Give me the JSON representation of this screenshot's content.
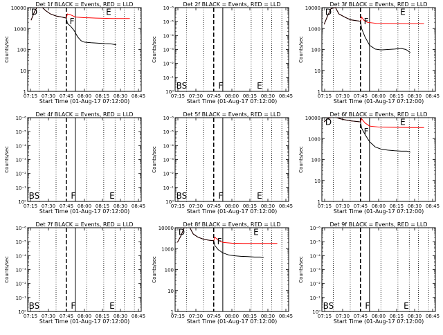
{
  "chart_data": [
    {
      "type": "line",
      "scale": "log",
      "title": "Det 1f BLACK = Events, RED = LLD",
      "ylabel": "Counts/sec",
      "xlabel": "Start Time (01-Aug-17 07:12:00)",
      "xticks": [
        "07:15",
        "07:30",
        "07:45",
        "08:00",
        "08:15",
        "08:30",
        "08:45"
      ],
      "xlim": [
        0,
        100
      ],
      "yticks": [
        "1",
        "10",
        "100",
        "1000",
        "10000"
      ],
      "ylim": [
        0,
        4
      ],
      "letters": [
        {
          "text": "D",
          "x": 3,
          "ly": 3.95
        },
        {
          "text": "F",
          "x": 37,
          "ly": 3.5
        },
        {
          "text": "E",
          "x": 69,
          "ly": 3.95
        }
      ],
      "series": [
        {
          "color": "#ff0000",
          "points": [
            [
              3,
              3.4
            ],
            [
              6,
              3.8
            ],
            [
              8,
              4.0
            ],
            [
              13,
              4.0
            ],
            [
              16,
              3.85
            ],
            [
              20,
              3.7
            ],
            [
              25,
              3.6
            ],
            [
              30,
              3.55
            ],
            [
              34,
              3.5
            ],
            [
              35,
              3.7
            ],
            [
              38,
              3.65
            ],
            [
              42,
              3.55
            ],
            [
              50,
              3.52
            ],
            [
              60,
              3.5
            ],
            [
              75,
              3.48
            ],
            [
              90,
              3.48
            ]
          ]
        },
        {
          "color": "#000000",
          "points": [
            [
              3,
              3.4
            ],
            [
              6,
              3.8
            ],
            [
              8,
              4.0
            ],
            [
              13,
              4.0
            ],
            [
              16,
              3.85
            ],
            [
              20,
              3.7
            ],
            [
              25,
              3.6
            ],
            [
              30,
              3.55
            ],
            [
              34,
              3.5
            ],
            [
              35,
              3.25
            ],
            [
              38,
              3.1
            ],
            [
              41,
              2.9
            ],
            [
              44,
              2.6
            ],
            [
              47,
              2.42
            ],
            [
              50,
              2.35
            ],
            [
              56,
              2.32
            ],
            [
              62,
              2.3
            ],
            [
              68,
              2.28
            ],
            [
              73,
              2.27
            ],
            [
              78,
              2.22
            ]
          ]
        }
      ]
    },
    {
      "type": "line",
      "scale": "ticks_e",
      "title": "Det 2f BLACK = Events, RED = LLD",
      "ylabel": "Counts/sec",
      "xlabel": "Start Time (01-Aug-17 07:12:00)",
      "xticks": [
        "07:15",
        "07:30",
        "07:45",
        "08:00",
        "08:15",
        "08:30",
        "08:45"
      ],
      "xlim": [
        0,
        100
      ],
      "yticks": [
        "10⁰",
        "10⁻¹",
        "10⁻²",
        "10⁻³",
        "10⁻⁴",
        "10⁻⁵",
        "10⁻⁶"
      ],
      "ylim": [
        0,
        6
      ],
      "letters": [
        {
          "text": "BS",
          "x": 1,
          "ly": 0.1
        },
        {
          "text": "F",
          "x": 38,
          "ly": 0.1
        },
        {
          "text": "E",
          "x": 72,
          "ly": 0.1
        }
      ],
      "series": []
    },
    {
      "type": "line",
      "scale": "log",
      "title": "Det 3f BLACK = Events, RED = LLD",
      "ylabel": "Counts/sec",
      "xlabel": "Start Time (01-Aug-17 07:12:00)",
      "xticks": [
        "07:15",
        "07:30",
        "07:45",
        "08:00",
        "08:15",
        "08:30",
        "08:45"
      ],
      "xlim": [
        0,
        100
      ],
      "yticks": [
        "1",
        "10",
        "100",
        "1000",
        "10000"
      ],
      "ylim": [
        0,
        4
      ],
      "letters": [
        {
          "text": "D",
          "x": 3,
          "ly": 3.95
        },
        {
          "text": "F",
          "x": 37,
          "ly": 3.5
        },
        {
          "text": "E",
          "x": 69,
          "ly": 3.95
        }
      ],
      "series": [
        {
          "color": "#ff0000",
          "points": [
            [
              2,
              3.2
            ],
            [
              5,
              3.6
            ],
            [
              8,
              3.95
            ],
            [
              12,
              4.0
            ],
            [
              15,
              3.7
            ],
            [
              20,
              3.55
            ],
            [
              25,
              3.42
            ],
            [
              30,
              3.38
            ],
            [
              34,
              3.35
            ],
            [
              35,
              3.55
            ],
            [
              37,
              3.4
            ],
            [
              40,
              3.3
            ],
            [
              48,
              3.25
            ],
            [
              60,
              3.24
            ],
            [
              80,
              3.23
            ],
            [
              90,
              3.23
            ]
          ]
        },
        {
          "color": "#000000",
          "points": [
            [
              2,
              3.2
            ],
            [
              5,
              3.6
            ],
            [
              8,
              3.95
            ],
            [
              12,
              4.0
            ],
            [
              15,
              3.7
            ],
            [
              20,
              3.55
            ],
            [
              25,
              3.42
            ],
            [
              30,
              3.38
            ],
            [
              34,
              3.35
            ],
            [
              35,
              3.0
            ],
            [
              38,
              2.6
            ],
            [
              42,
              2.2
            ],
            [
              47,
              2.02
            ],
            [
              52,
              1.98
            ],
            [
              58,
              2.0
            ],
            [
              64,
              2.02
            ],
            [
              70,
              2.05
            ],
            [
              74,
              2.0
            ],
            [
              78,
              1.85
            ]
          ]
        }
      ]
    },
    {
      "type": "line",
      "scale": "ticks_e",
      "title": "Det 4f BLACK = Events, RED = LLD",
      "ylabel": "Counts/sec",
      "xlabel": "Start Time (01-Aug-17 07:12:00)",
      "xticks": [
        "07:15",
        "07:30",
        "07:45",
        "08:00",
        "08:15",
        "08:30",
        "08:45"
      ],
      "xlim": [
        0,
        100
      ],
      "yticks": [
        "10⁰",
        "10⁻¹",
        "10⁻²",
        "10⁻³",
        "10⁻⁴",
        "10⁻⁵",
        "10⁻⁶"
      ],
      "ylim": [
        0,
        6
      ],
      "letters": [
        {
          "text": "BS",
          "x": 1,
          "ly": 0.1
        },
        {
          "text": "F",
          "x": 38,
          "ly": 0.1
        },
        {
          "text": "E",
          "x": 72,
          "ly": 0.1
        }
      ],
      "series": []
    },
    {
      "type": "line",
      "scale": "ticks_e",
      "title": "Det 5f BLACK = Events, RED = LLD",
      "ylabel": "Counts/sec",
      "xlabel": "Start Time (01-Aug-17 07:12:00)",
      "xticks": [
        "07:15",
        "07:30",
        "07:45",
        "08:00",
        "08:15",
        "08:30",
        "08:45"
      ],
      "xlim": [
        0,
        100
      ],
      "yticks": [
        "10⁰",
        "10⁻¹",
        "10⁻²",
        "10⁻³",
        "10⁻⁴",
        "10⁻⁵",
        "10⁻⁶"
      ],
      "ylim": [
        0,
        6
      ],
      "letters": [
        {
          "text": "BS",
          "x": 1,
          "ly": 0.1
        },
        {
          "text": "F",
          "x": 38,
          "ly": 0.1
        },
        {
          "text": "E",
          "x": 72,
          "ly": 0.1
        }
      ],
      "series": []
    },
    {
      "type": "line",
      "scale": "log",
      "title": "Det 6f BLACK = Events, RED = LLD",
      "ylabel": "Counts/sec",
      "xlabel": "Start Time (01-Aug-17 07:12:00)",
      "xticks": [
        "07:15",
        "07:30",
        "07:45",
        "08:00",
        "08:15",
        "08:30",
        "08:45"
      ],
      "xlim": [
        0,
        100
      ],
      "yticks": [
        "1",
        "10",
        "100",
        "1000",
        "10000"
      ],
      "ylim": [
        0,
        4
      ],
      "letters": [
        {
          "text": "D",
          "x": 3,
          "ly": 3.95
        },
        {
          "text": "F",
          "x": 37,
          "ly": 3.5
        },
        {
          "text": "E",
          "x": 69,
          "ly": 3.95
        }
      ],
      "series": [
        {
          "color": "#ff0000",
          "points": [
            [
              2,
              3.8
            ],
            [
              5,
              3.95
            ],
            [
              8,
              4.0
            ],
            [
              13,
              4.0
            ],
            [
              16,
              3.95
            ],
            [
              20,
              3.9
            ],
            [
              25,
              3.85
            ],
            [
              30,
              3.82
            ],
            [
              34,
              3.8
            ],
            [
              35,
              3.95
            ],
            [
              38,
              3.75
            ],
            [
              42,
              3.6
            ],
            [
              50,
              3.55
            ],
            [
              60,
              3.54
            ],
            [
              80,
              3.53
            ],
            [
              90,
              3.53
            ]
          ]
        },
        {
          "color": "#000000",
          "points": [
            [
              2,
              3.8
            ],
            [
              5,
              3.95
            ],
            [
              8,
              4.0
            ],
            [
              13,
              4.0
            ],
            [
              16,
              3.95
            ],
            [
              20,
              3.9
            ],
            [
              25,
              3.85
            ],
            [
              30,
              3.82
            ],
            [
              34,
              3.8
            ],
            [
              35,
              3.5
            ],
            [
              38,
              3.2
            ],
            [
              42,
              2.85
            ],
            [
              47,
              2.6
            ],
            [
              52,
              2.5
            ],
            [
              58,
              2.45
            ],
            [
              64,
              2.42
            ],
            [
              70,
              2.4
            ],
            [
              75,
              2.4
            ],
            [
              78,
              2.35
            ]
          ]
        }
      ]
    },
    {
      "type": "line",
      "scale": "ticks_e",
      "title": "Det 7f BLACK = Events, RED = LLD",
      "ylabel": "Counts/sec",
      "xlabel": "Start Time (01-Aug-17 07:12:00)",
      "xticks": [
        "07:15",
        "07:30",
        "07:45",
        "08:00",
        "08:15",
        "08:30",
        "08:45"
      ],
      "xlim": [
        0,
        100
      ],
      "yticks": [
        "10⁰",
        "10⁻¹",
        "10⁻²",
        "10⁻³",
        "10⁻⁴",
        "10⁻⁵",
        "10⁻⁶"
      ],
      "ylim": [
        0,
        6
      ],
      "letters": [
        {
          "text": "BS",
          "x": 1,
          "ly": 0.1
        },
        {
          "text": "F",
          "x": 38,
          "ly": 0.1
        },
        {
          "text": "E",
          "x": 72,
          "ly": 0.1
        }
      ],
      "series": []
    },
    {
      "type": "line",
      "scale": "log",
      "title": "Det 8f BLACK = Events, RED = LLD",
      "ylabel": "Counts/sec",
      "xlabel": "Start Time (01-Aug-17 07:12:00)",
      "xticks": [
        "07:15",
        "07:30",
        "07:45",
        "08:00",
        "08:15",
        "08:30",
        "08:45"
      ],
      "xlim": [
        0,
        100
      ],
      "yticks": [
        "1",
        "10",
        "100",
        "1000",
        "10000"
      ],
      "ylim": [
        0,
        4
      ],
      "letters": [
        {
          "text": "D",
          "x": 3,
          "ly": 3.95
        },
        {
          "text": "F",
          "x": 37,
          "ly": 3.5
        },
        {
          "text": "E",
          "x": 69,
          "ly": 3.95
        }
      ],
      "series": [
        {
          "color": "#ff0000",
          "points": [
            [
              2,
              3.3
            ],
            [
              5,
              3.6
            ],
            [
              8,
              4.0
            ],
            [
              13,
              4.0
            ],
            [
              16,
              3.7
            ],
            [
              20,
              3.55
            ],
            [
              25,
              3.45
            ],
            [
              30,
              3.4
            ],
            [
              34,
              3.38
            ],
            [
              35,
              3.55
            ],
            [
              38,
              3.4
            ],
            [
              42,
              3.3
            ],
            [
              50,
              3.26
            ],
            [
              60,
              3.25
            ],
            [
              80,
              3.25
            ],
            [
              90,
              3.25
            ]
          ]
        },
        {
          "color": "#000000",
          "points": [
            [
              2,
              3.3
            ],
            [
              5,
              3.6
            ],
            [
              8,
              4.0
            ],
            [
              13,
              4.0
            ],
            [
              16,
              3.7
            ],
            [
              20,
              3.55
            ],
            [
              25,
              3.45
            ],
            [
              30,
              3.4
            ],
            [
              34,
              3.38
            ],
            [
              35,
              3.15
            ],
            [
              38,
              2.95
            ],
            [
              42,
              2.8
            ],
            [
              47,
              2.7
            ],
            [
              52,
              2.66
            ],
            [
              58,
              2.63
            ],
            [
              64,
              2.62
            ],
            [
              70,
              2.6
            ],
            [
              75,
              2.6
            ],
            [
              78,
              2.58
            ]
          ]
        }
      ]
    },
    {
      "type": "line",
      "scale": "ticks_e",
      "title": "Det 9f BLACK = Events, RED = LLD",
      "ylabel": "Counts/sec",
      "xlabel": "Start Time (01-Aug-17 07:12:00)",
      "xticks": [
        "07:15",
        "07:30",
        "07:45",
        "08:00",
        "08:15",
        "08:30",
        "08:45"
      ],
      "xlim": [
        0,
        100
      ],
      "yticks": [
        "10⁰",
        "10⁻¹",
        "10⁻²",
        "10⁻³",
        "10⁻⁴",
        "10⁻⁵",
        "10⁻⁶"
      ],
      "ylim": [
        0,
        6
      ],
      "letters": [
        {
          "text": "BS",
          "x": 1,
          "ly": 0.1
        },
        {
          "text": "F",
          "x": 38,
          "ly": 0.1
        },
        {
          "text": "E",
          "x": 72,
          "ly": 0.1
        }
      ],
      "series": []
    }
  ]
}
